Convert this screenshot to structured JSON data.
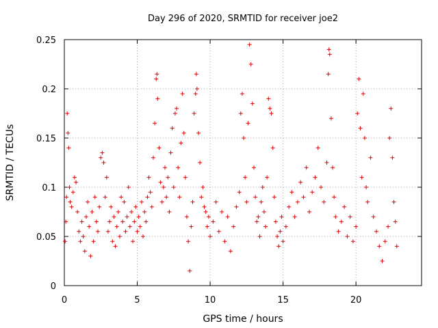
{
  "chart_data": {
    "type": "scatter",
    "title": "Day 296 of 2020, SRMTID for receiver joe2",
    "xlabel": "GPS time / hours",
    "ylabel": "SRMTID / TECUs",
    "xlim": [
      0,
      24.5
    ],
    "ylim": [
      0,
      0.25
    ],
    "x_ticks": [
      0,
      5,
      10,
      15,
      20
    ],
    "x_tick_labels": [
      "0",
      "5",
      "10",
      "15",
      "20"
    ],
    "y_ticks": [
      0,
      0.05,
      0.1,
      0.15,
      0.2,
      0.25
    ],
    "y_tick_labels": [
      "0",
      "0.05",
      "0.1",
      "0.15",
      "0.2",
      "0.25"
    ],
    "grid": true,
    "marker": "+",
    "color": "#e00000",
    "series": [
      {
        "name": "SRMTID",
        "points": [
          [
            0.05,
            0.045
          ],
          [
            0.1,
            0.065
          ],
          [
            0.15,
            0.09
          ],
          [
            0.2,
            0.175
          ],
          [
            0.25,
            0.155
          ],
          [
            0.3,
            0.14
          ],
          [
            0.35,
            0.1
          ],
          [
            0.4,
            0.085
          ],
          [
            0.5,
            0.08
          ],
          [
            0.6,
            0.095
          ],
          [
            0.7,
            0.11
          ],
          [
            0.8,
            0.105
          ],
          [
            0.9,
            0.075
          ],
          [
            1.0,
            0.055
          ],
          [
            1.1,
            0.045
          ],
          [
            1.2,
            0.065
          ],
          [
            1.3,
            0.05
          ],
          [
            1.4,
            0.035
          ],
          [
            1.5,
            0.07
          ],
          [
            1.6,
            0.085
          ],
          [
            1.7,
            0.06
          ],
          [
            1.8,
            0.03
          ],
          [
            1.9,
            0.075
          ],
          [
            2.0,
            0.045
          ],
          [
            2.1,
            0.09
          ],
          [
            2.2,
            0.065
          ],
          [
            2.3,
            0.055
          ],
          [
            2.4,
            0.08
          ],
          [
            2.5,
            0.13
          ],
          [
            2.6,
            0.135
          ],
          [
            2.7,
            0.125
          ],
          [
            2.8,
            0.09
          ],
          [
            2.9,
            0.11
          ],
          [
            3.0,
            0.055
          ],
          [
            3.1,
            0.065
          ],
          [
            3.2,
            0.08
          ],
          [
            3.3,
            0.045
          ],
          [
            3.4,
            0.07
          ],
          [
            3.5,
            0.04
          ],
          [
            3.6,
            0.06
          ],
          [
            3.7,
            0.075
          ],
          [
            3.8,
            0.05
          ],
          [
            3.9,
            0.09
          ],
          [
            4.0,
            0.065
          ],
          [
            4.1,
            0.085
          ],
          [
            4.2,
            0.055
          ],
          [
            4.3,
            0.07
          ],
          [
            4.4,
            0.1
          ],
          [
            4.5,
            0.06
          ],
          [
            4.6,
            0.075
          ],
          [
            4.7,
            0.045
          ],
          [
            4.8,
            0.065
          ],
          [
            4.9,
            0.08
          ],
          [
            5.0,
            0.055
          ],
          [
            5.1,
            0.07
          ],
          [
            5.2,
            0.06
          ],
          [
            5.3,
            0.085
          ],
          [
            5.4,
            0.05
          ],
          [
            5.5,
            0.075
          ],
          [
            5.6,
            0.065
          ],
          [
            5.7,
            0.09
          ],
          [
            5.8,
            0.11
          ],
          [
            5.9,
            0.095
          ],
          [
            6.0,
            0.08
          ],
          [
            6.1,
            0.13
          ],
          [
            6.2,
            0.165
          ],
          [
            6.3,
            0.21
          ],
          [
            6.35,
            0.215
          ],
          [
            6.4,
            0.19
          ],
          [
            6.5,
            0.14
          ],
          [
            6.6,
            0.105
          ],
          [
            6.7,
            0.085
          ],
          [
            6.8,
            0.1
          ],
          [
            6.9,
            0.12
          ],
          [
            7.0,
            0.09
          ],
          [
            7.1,
            0.11
          ],
          [
            7.2,
            0.075
          ],
          [
            7.3,
            0.135
          ],
          [
            7.4,
            0.16
          ],
          [
            7.5,
            0.1
          ],
          [
            7.6,
            0.175
          ],
          [
            7.7,
            0.18
          ],
          [
            7.8,
            0.12
          ],
          [
            7.9,
            0.09
          ],
          [
            8.0,
            0.145
          ],
          [
            8.1,
            0.195
          ],
          [
            8.2,
            0.155
          ],
          [
            8.3,
            0.11
          ],
          [
            8.4,
            0.07
          ],
          [
            8.5,
            0.045
          ],
          [
            8.6,
            0.015
          ],
          [
            8.7,
            0.06
          ],
          [
            8.8,
            0.085
          ],
          [
            8.9,
            0.175
          ],
          [
            9.0,
            0.195
          ],
          [
            9.05,
            0.215
          ],
          [
            9.1,
            0.2
          ],
          [
            9.2,
            0.155
          ],
          [
            9.3,
            0.125
          ],
          [
            9.4,
            0.09
          ],
          [
            9.5,
            0.1
          ],
          [
            9.6,
            0.08
          ],
          [
            9.7,
            0.075
          ],
          [
            9.8,
            0.06
          ],
          [
            9.9,
            0.07
          ],
          [
            10.0,
            0.05
          ],
          [
            10.2,
            0.065
          ],
          [
            10.4,
            0.085
          ],
          [
            10.6,
            0.055
          ],
          [
            10.8,
            0.075
          ],
          [
            11.0,
            0.045
          ],
          [
            11.2,
            0.07
          ],
          [
            11.4,
            0.035
          ],
          [
            11.6,
            0.06
          ],
          [
            11.8,
            0.08
          ],
          [
            12.0,
            0.095
          ],
          [
            12.1,
            0.175
          ],
          [
            12.2,
            0.195
          ],
          [
            12.3,
            0.15
          ],
          [
            12.4,
            0.11
          ],
          [
            12.5,
            0.085
          ],
          [
            12.6,
            0.165
          ],
          [
            12.7,
            0.245
          ],
          [
            12.8,
            0.225
          ],
          [
            12.9,
            0.185
          ],
          [
            13.0,
            0.12
          ],
          [
            13.1,
            0.09
          ],
          [
            13.2,
            0.065
          ],
          [
            13.3,
            0.07
          ],
          [
            13.4,
            0.05
          ],
          [
            13.5,
            0.085
          ],
          [
            13.6,
            0.1
          ],
          [
            13.7,
            0.075
          ],
          [
            13.8,
            0.06
          ],
          [
            13.9,
            0.11
          ],
          [
            14.0,
            0.19
          ],
          [
            14.1,
            0.18
          ],
          [
            14.2,
            0.175
          ],
          [
            14.3,
            0.14
          ],
          [
            14.4,
            0.09
          ],
          [
            14.5,
            0.065
          ],
          [
            14.6,
            0.05
          ],
          [
            14.7,
            0.04
          ],
          [
            14.8,
            0.055
          ],
          [
            14.9,
            0.07
          ],
          [
            15.0,
            0.045
          ],
          [
            15.2,
            0.06
          ],
          [
            15.4,
            0.08
          ],
          [
            15.6,
            0.095
          ],
          [
            15.8,
            0.07
          ],
          [
            16.0,
            0.085
          ],
          [
            16.2,
            0.105
          ],
          [
            16.4,
            0.09
          ],
          [
            16.6,
            0.12
          ],
          [
            16.8,
            0.075
          ],
          [
            17.0,
            0.095
          ],
          [
            17.2,
            0.11
          ],
          [
            17.4,
            0.14
          ],
          [
            17.6,
            0.1
          ],
          [
            17.8,
            0.085
          ],
          [
            18.0,
            0.125
          ],
          [
            18.1,
            0.215
          ],
          [
            18.15,
            0.24
          ],
          [
            18.2,
            0.235
          ],
          [
            18.3,
            0.17
          ],
          [
            18.4,
            0.12
          ],
          [
            18.5,
            0.09
          ],
          [
            18.6,
            0.07
          ],
          [
            18.8,
            0.055
          ],
          [
            19.0,
            0.065
          ],
          [
            19.2,
            0.08
          ],
          [
            19.4,
            0.05
          ],
          [
            19.6,
            0.07
          ],
          [
            19.8,
            0.045
          ],
          [
            20.0,
            0.06
          ],
          [
            20.1,
            0.175
          ],
          [
            20.2,
            0.21
          ],
          [
            20.3,
            0.16
          ],
          [
            20.4,
            0.11
          ],
          [
            20.5,
            0.195
          ],
          [
            20.6,
            0.15
          ],
          [
            20.7,
            0.1
          ],
          [
            20.8,
            0.085
          ],
          [
            21.0,
            0.13
          ],
          [
            21.2,
            0.07
          ],
          [
            21.4,
            0.055
          ],
          [
            21.6,
            0.04
          ],
          [
            21.8,
            0.025
          ],
          [
            22.0,
            0.045
          ],
          [
            22.2,
            0.06
          ],
          [
            22.3,
            0.15
          ],
          [
            22.4,
            0.18
          ],
          [
            22.5,
            0.13
          ],
          [
            22.6,
            0.085
          ],
          [
            22.7,
            0.065
          ],
          [
            22.8,
            0.04
          ]
        ]
      }
    ]
  }
}
